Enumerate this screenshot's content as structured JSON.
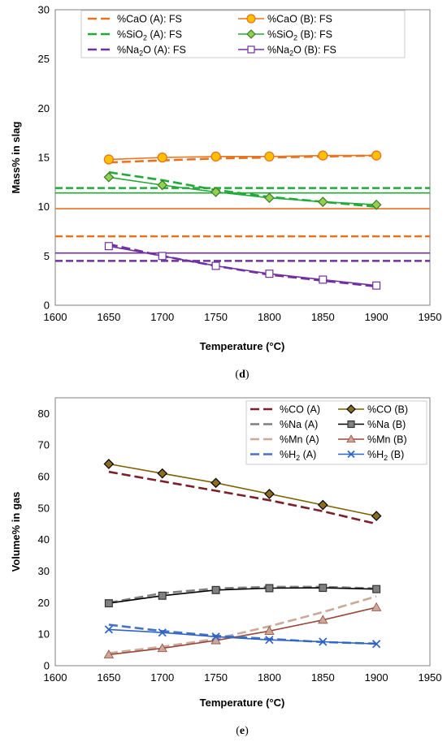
{
  "chart_data": [
    {
      "type": "line",
      "panel_label": "d",
      "xlabel": "Temperature (°C)",
      "ylabel": "Mass% in slag",
      "xlim": [
        1600,
        1950
      ],
      "ylim": [
        0,
        30
      ],
      "xticks": [
        1600,
        1650,
        1700,
        1750,
        1800,
        1850,
        1900,
        1950
      ],
      "yticks": [
        0,
        5,
        10,
        15,
        20,
        25,
        30
      ],
      "grid": false,
      "legend_position": "top",
      "x": [
        1650,
        1700,
        1750,
        1800,
        1850,
        1900
      ],
      "series": [
        {
          "key": "cao_a",
          "name": "%CaO (A): FS",
          "name_main": "%CaO (A): FS",
          "name_sub": "",
          "name_tail": "",
          "color": "#e8731f",
          "style": "dashed",
          "marker": "none",
          "values": [
            14.5,
            14.7,
            14.9,
            15.0,
            15.1,
            15.2
          ],
          "fs_value": 7.0,
          "fs_style": "dashed"
        },
        {
          "key": "cao_b",
          "name": "%CaO (B): FS",
          "name_main": "%CaO (B): FS",
          "name_sub": "",
          "name_tail": "",
          "color": "#e8731f",
          "style": "solid",
          "marker": "circle",
          "marker_fill": "#ffc000",
          "values": [
            14.8,
            15.0,
            15.1,
            15.1,
            15.2,
            15.2
          ],
          "fs_value": 9.8,
          "fs_style": "solid"
        },
        {
          "key": "sio2_a",
          "name": "%SiO2 (A): FS",
          "name_main": "%SiO",
          "name_sub": "2",
          "name_tail": " (A): FS",
          "color": "#22aa38",
          "style": "dashed",
          "marker": "none",
          "values": [
            13.5,
            12.7,
            11.7,
            11.0,
            10.5,
            10.0
          ],
          "fs_value": 11.9,
          "fs_style": "dashed"
        },
        {
          "key": "sio2_b",
          "name": "%SiO2 (B): FS",
          "name_main": "%SiO",
          "name_sub": "2",
          "name_tail": " (B): FS",
          "color": "#22aa38",
          "style": "solid",
          "marker": "diamond",
          "marker_fill": "#92d050",
          "values": [
            13.0,
            12.2,
            11.5,
            10.9,
            10.5,
            10.2
          ],
          "fs_value": 11.4,
          "fs_style": "solid"
        },
        {
          "key": "na2o_a",
          "name": "%Na2O (A): FS",
          "name_main": "%Na",
          "name_sub": "2",
          "name_tail": "O (A): FS",
          "color": "#7030a0",
          "style": "dashed",
          "marker": "none",
          "values": [
            6.2,
            5.0,
            4.0,
            3.1,
            2.5,
            1.9
          ],
          "fs_value": 4.5,
          "fs_style": "dashed"
        },
        {
          "key": "na2o_b",
          "name": "%Na2O (B): FS",
          "name_main": "%Na",
          "name_sub": "2",
          "name_tail": "O (B): FS",
          "color": "#7030a0",
          "style": "solid",
          "marker": "square",
          "marker_fill": "#ffffff",
          "values": [
            6.0,
            5.0,
            4.0,
            3.2,
            2.6,
            2.0
          ],
          "fs_value": 5.3,
          "fs_style": "solid"
        }
      ]
    },
    {
      "type": "line",
      "panel_label": "e",
      "xlabel": "Temperature (°C)",
      "ylabel": "Volume% in gas",
      "xlim": [
        1600,
        1950
      ],
      "ylim": [
        0,
        85
      ],
      "xticks": [
        1600,
        1650,
        1700,
        1750,
        1800,
        1850,
        1900,
        1950
      ],
      "yticks": [
        0,
        10,
        20,
        30,
        40,
        50,
        60,
        70,
        80
      ],
      "grid": false,
      "legend_position": "top-right",
      "x": [
        1650,
        1700,
        1750,
        1800,
        1850,
        1900
      ],
      "series": [
        {
          "key": "co_a",
          "name": "%CO (A)",
          "name_main": "%CO (A)",
          "name_sub": "",
          "name_tail": "",
          "color": "#7b1f2a",
          "style": "dashed",
          "marker": "none",
          "values": [
            61.5,
            58.5,
            55.5,
            52.5,
            49.0,
            45.0
          ]
        },
        {
          "key": "co_b",
          "name": "%CO (B)",
          "name_main": "%CO (B)",
          "name_sub": "",
          "name_tail": "",
          "color": "#7f6000",
          "style": "solid",
          "marker": "diamond",
          "marker_fill": "#8c6d1f",
          "values": [
            64.0,
            61.0,
            58.0,
            54.5,
            51.0,
            47.5
          ]
        },
        {
          "key": "na_a",
          "name": "%Na (A)",
          "name_main": "%Na (A)",
          "name_sub": "",
          "name_tail": "",
          "color": "#7f7f7f",
          "style": "dashed",
          "marker": "none",
          "values": [
            20.0,
            23.0,
            24.5,
            25.0,
            25.0,
            24.5
          ]
        },
        {
          "key": "na_b",
          "name": "%Na (B)",
          "name_main": "%Na (B)",
          "name_sub": "",
          "name_tail": "",
          "color": "#000000",
          "style": "solid",
          "marker": "square",
          "marker_fill": "#808080",
          "values": [
            19.8,
            22.2,
            24.0,
            24.6,
            24.7,
            24.3
          ]
        },
        {
          "key": "mn_a",
          "name": "%Mn (A)",
          "name_main": "%Mn (A)",
          "name_sub": "",
          "name_tail": "",
          "color": "#c9a99a",
          "style": "dashed",
          "marker": "none",
          "values": [
            4.0,
            6.0,
            8.5,
            12.5,
            17.0,
            22.0
          ]
        },
        {
          "key": "mn_b",
          "name": "%Mn (B)",
          "name_main": "%Mn (B)",
          "name_sub": "",
          "name_tail": "",
          "color": "#984838",
          "style": "solid",
          "marker": "triangle",
          "marker_fill": "#c9a99a",
          "values": [
            3.5,
            5.5,
            8.0,
            11.0,
            14.5,
            18.5
          ]
        },
        {
          "key": "h2_a",
          "name": "%H2 (A)",
          "name_main": "%H",
          "name_sub": "2",
          "name_tail": " (A)",
          "color": "#4472c4",
          "style": "dashed",
          "marker": "none",
          "values": [
            13.0,
            11.0,
            9.5,
            8.5,
            7.5,
            7.0
          ]
        },
        {
          "key": "h2_b",
          "name": "%H2 (B)",
          "name_main": "%H",
          "name_sub": "2",
          "name_tail": " (B)",
          "color": "#2e63c7",
          "style": "solid",
          "marker": "x",
          "marker_fill": "#2e63c7",
          "values": [
            11.5,
            10.5,
            9.2,
            8.2,
            7.6,
            6.9
          ]
        }
      ]
    }
  ]
}
